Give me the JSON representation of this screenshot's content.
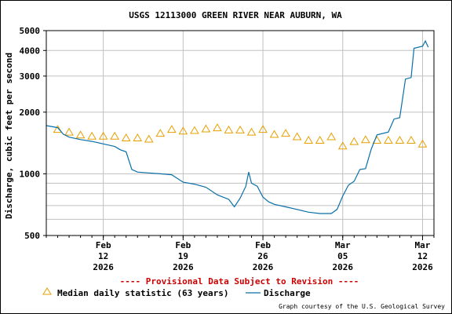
{
  "chart_data": {
    "type": "line",
    "title": "USGS 12113000 GREEN RIVER NEAR AUBURN, WA",
    "ylabel": "Discharge, cubic feet per second",
    "xlabel": "",
    "y_scale": "log",
    "ylim": [
      500,
      5000
    ],
    "y_ticks": [
      500,
      1000,
      2000,
      3000,
      4000,
      5000
    ],
    "y_tick_labels": [
      "500",
      "1000",
      "2000",
      "3000",
      "4000",
      "5000"
    ],
    "xlim": [
      "2026-02-07",
      "2026-03-13"
    ],
    "x_ticks": [
      {
        "date": "2026-02-12",
        "month": "Feb",
        "day": "12",
        "year": "2026"
      },
      {
        "date": "2026-02-19",
        "month": "Feb",
        "day": "19",
        "year": "2026"
      },
      {
        "date": "2026-02-26",
        "month": "Feb",
        "day": "26",
        "year": "2026"
      },
      {
        "date": "2026-03-05",
        "month": "Mar",
        "day": "05",
        "year": "2026"
      },
      {
        "date": "2026-03-12",
        "month": "Mar",
        "day": "12",
        "year": "2026"
      }
    ],
    "grid": true,
    "legend_placement": "bottom",
    "series": [
      {
        "name": "Discharge",
        "kind": "line",
        "color": "#0a6fa8",
        "points": [
          [
            "2026-02-07",
            1720
          ],
          [
            "2026-02-08",
            1680
          ],
          [
            "2026-02-08T12",
            1560
          ],
          [
            "2026-02-09",
            1510
          ],
          [
            "2026-02-10",
            1470
          ],
          [
            "2026-02-11",
            1440
          ],
          [
            "2026-02-12",
            1400
          ],
          [
            "2026-02-13",
            1360
          ],
          [
            "2026-02-13T12",
            1310
          ],
          [
            "2026-02-14",
            1280
          ],
          [
            "2026-02-14T12",
            1050
          ],
          [
            "2026-02-15",
            1020
          ],
          [
            "2026-02-16",
            1010
          ],
          [
            "2026-02-17",
            1000
          ],
          [
            "2026-02-18",
            990
          ],
          [
            "2026-02-19",
            910
          ],
          [
            "2026-02-20",
            890
          ],
          [
            "2026-02-21",
            860
          ],
          [
            "2026-02-22",
            790
          ],
          [
            "2026-02-23",
            750
          ],
          [
            "2026-02-23T12",
            690
          ],
          [
            "2026-02-24",
            760
          ],
          [
            "2026-02-24T12",
            870
          ],
          [
            "2026-02-24T18",
            1020
          ],
          [
            "2026-02-25",
            900
          ],
          [
            "2026-02-25T12",
            870
          ],
          [
            "2026-02-26",
            770
          ],
          [
            "2026-02-26T12",
            730
          ],
          [
            "2026-02-27",
            710
          ],
          [
            "2026-02-28",
            690
          ],
          [
            "2026-03-01",
            670
          ],
          [
            "2026-03-02",
            650
          ],
          [
            "2026-03-03",
            640
          ],
          [
            "2026-03-04",
            640
          ],
          [
            "2026-03-04T12",
            670
          ],
          [
            "2026-03-05",
            780
          ],
          [
            "2026-03-05T12",
            880
          ],
          [
            "2026-03-06",
            920
          ],
          [
            "2026-03-06T12",
            1050
          ],
          [
            "2026-03-07",
            1060
          ],
          [
            "2026-03-07T12",
            1320
          ],
          [
            "2026-03-08",
            1550
          ],
          [
            "2026-03-09",
            1600
          ],
          [
            "2026-03-09T12",
            1850
          ],
          [
            "2026-03-10",
            1880
          ],
          [
            "2026-03-10T12",
            2900
          ],
          [
            "2026-03-11",
            2950
          ],
          [
            "2026-03-11T06",
            4100
          ],
          [
            "2026-03-12",
            4200
          ],
          [
            "2026-03-12T06",
            4450
          ],
          [
            "2026-03-12T12",
            4150
          ]
        ]
      },
      {
        "name": "Median daily statistic (63 years)",
        "kind": "marker",
        "marker": "triangle",
        "color": "#e6a000",
        "points": [
          [
            "2026-02-08",
            1650
          ],
          [
            "2026-02-09",
            1600
          ],
          [
            "2026-02-10",
            1550
          ],
          [
            "2026-02-11",
            1530
          ],
          [
            "2026-02-12",
            1530
          ],
          [
            "2026-02-13",
            1530
          ],
          [
            "2026-02-14",
            1500
          ],
          [
            "2026-02-15",
            1500
          ],
          [
            "2026-02-16",
            1480
          ],
          [
            "2026-02-17",
            1580
          ],
          [
            "2026-02-18",
            1650
          ],
          [
            "2026-02-19",
            1620
          ],
          [
            "2026-02-20",
            1630
          ],
          [
            "2026-02-21",
            1660
          ],
          [
            "2026-02-22",
            1680
          ],
          [
            "2026-02-23",
            1640
          ],
          [
            "2026-02-24",
            1640
          ],
          [
            "2026-02-25",
            1600
          ],
          [
            "2026-02-26",
            1650
          ],
          [
            "2026-02-27",
            1560
          ],
          [
            "2026-02-28",
            1580
          ],
          [
            "2026-03-01",
            1520
          ],
          [
            "2026-03-02",
            1460
          ],
          [
            "2026-03-03",
            1460
          ],
          [
            "2026-03-04",
            1520
          ],
          [
            "2026-03-05",
            1370
          ],
          [
            "2026-03-06",
            1440
          ],
          [
            "2026-03-07",
            1470
          ],
          [
            "2026-03-08",
            1460
          ],
          [
            "2026-03-09",
            1460
          ],
          [
            "2026-03-10",
            1460
          ],
          [
            "2026-03-11",
            1460
          ],
          [
            "2026-03-12",
            1400
          ]
        ]
      }
    ]
  },
  "provisional_note": "---- Provisional Data Subject to Revision ----",
  "legend": {
    "median_label": "Median daily statistic (63 years)",
    "discharge_label": "Discharge"
  },
  "credit": "Graph courtesy of the U.S. Geological Survey",
  "colors": {
    "discharge": "#0a6fa8",
    "median": "#e6a000",
    "grid": "#c0c0c0",
    "provisional": "#cc0000"
  }
}
